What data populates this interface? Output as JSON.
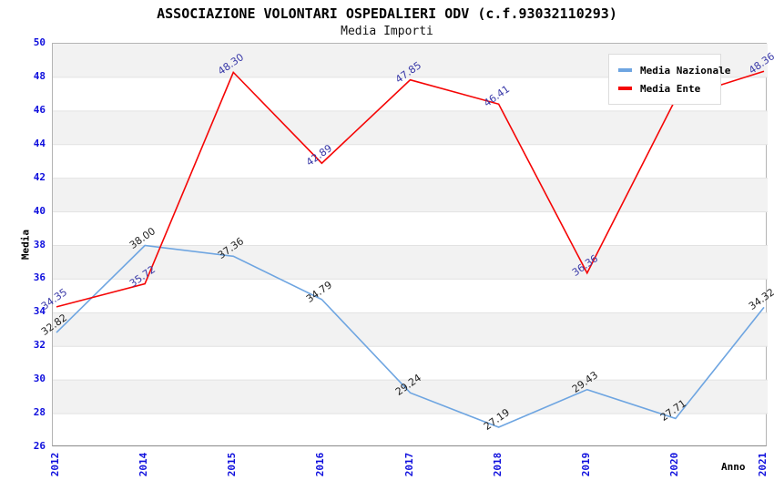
{
  "title": "ASSOCIAZIONE VOLONTARI OSPEDALIERI ODV (c.f.93032110293)",
  "subtitle": "Media Importi",
  "chart_data": {
    "type": "line",
    "categories": [
      "2012",
      "2014",
      "2015",
      "2016",
      "2017",
      "2018",
      "2019",
      "2020",
      "2021"
    ],
    "series": [
      {
        "name": "Media Nazionale",
        "color": "#6ea5e1",
        "label_color": "#222222",
        "values": [
          32.82,
          38.0,
          37.36,
          34.79,
          29.24,
          27.19,
          29.43,
          27.71,
          34.32
        ],
        "labels": [
          "32.82",
          "38.00",
          "37.36",
          "34.79",
          "29.24",
          "27.19",
          "29.43",
          "27.71",
          "34.32"
        ]
      },
      {
        "name": "Media Ente",
        "color": "#f50505",
        "label_color": "#3939a8",
        "values": [
          34.35,
          35.72,
          48.3,
          42.89,
          47.85,
          46.41,
          36.36,
          46.7,
          48.36
        ],
        "labels": [
          "34.35",
          "35.72",
          "48.30",
          "42.89",
          "47.85",
          "46.41",
          "36.36",
          "",
          "48.36"
        ]
      }
    ],
    "xlabel": "Anno",
    "ylabel": "Media",
    "ylim": [
      26,
      50
    ],
    "ytick_step": 2,
    "grid": true,
    "banded_background": true,
    "legend_position": "top-right"
  },
  "colors": {
    "tick_label": "#0e0edd",
    "band_gray": "#f2f2f2",
    "gridline": "#e2e2e2",
    "plot_border": "#b4b4b4",
    "background": "#ffffff"
  }
}
